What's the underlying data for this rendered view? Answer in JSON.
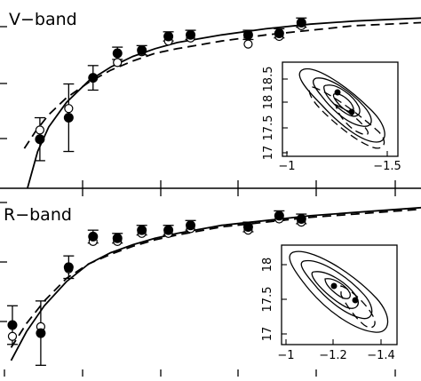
{
  "chart_data": [
    {
      "type": "scatter",
      "panel_label": "V−band",
      "xlim": [
        0.0,
        9.5
      ],
      "ylim": [
        16.0,
        21.5
      ],
      "series": [
        {
          "marker": "filled-circle",
          "points": [
            {
              "x": 0.9,
              "y": 17.6,
              "err": 0.7
            },
            {
              "x": 1.55,
              "y": 18.3,
              "err": 1.1
            },
            {
              "x": 2.1,
              "y": 19.6,
              "err": 0.4
            },
            {
              "x": 2.65,
              "y": 20.4,
              "err": 0.2
            },
            {
              "x": 3.2,
              "y": 20.5,
              "err": 0.15
            },
            {
              "x": 3.8,
              "y": 20.95,
              "err": 0.15
            },
            {
              "x": 4.3,
              "y": 21.0,
              "err": 0.15
            },
            {
              "x": 5.6,
              "y": 21.0,
              "err": 0.15
            },
            {
              "x": 6.3,
              "y": 21.05,
              "err": 0.15
            },
            {
              "x": 6.8,
              "y": 21.4,
              "err": 0.15
            }
          ]
        },
        {
          "marker": "open-circle",
          "points": [
            {
              "x": 0.9,
              "y": 17.9
            },
            {
              "x": 1.55,
              "y": 18.6
            },
            {
              "x": 2.1,
              "y": 19.6
            },
            {
              "x": 2.65,
              "y": 20.1
            },
            {
              "x": 3.2,
              "y": 20.45
            },
            {
              "x": 3.8,
              "y": 20.8
            },
            {
              "x": 4.3,
              "y": 20.9
            },
            {
              "x": 5.6,
              "y": 20.7
            },
            {
              "x": 6.3,
              "y": 20.95
            },
            {
              "x": 6.8,
              "y": 21.3
            }
          ]
        },
        {
          "style": "solid",
          "points": [
            {
              "x": 0.62,
              "y": 16.0
            },
            {
              "x": 0.85,
              "y": 17.2
            },
            {
              "x": 1.1,
              "y": 18.0
            },
            {
              "x": 1.5,
              "y": 18.8
            },
            {
              "x": 2.0,
              "y": 19.5
            },
            {
              "x": 2.5,
              "y": 19.95
            },
            {
              "x": 3.0,
              "y": 20.3
            },
            {
              "x": 3.5,
              "y": 20.55
            },
            {
              "x": 4.0,
              "y": 20.75
            },
            {
              "x": 5.0,
              "y": 21.0
            },
            {
              "x": 6.0,
              "y": 21.2
            },
            {
              "x": 7.0,
              "y": 21.35
            },
            {
              "x": 8.0,
              "y": 21.45
            },
            {
              "x": 9.5,
              "y": 21.55
            }
          ]
        },
        {
          "style": "dashed",
          "points": [
            {
              "x": 0.55,
              "y": 17.3
            },
            {
              "x": 0.8,
              "y": 17.85
            },
            {
              "x": 1.1,
              "y": 18.4
            },
            {
              "x": 1.5,
              "y": 18.95
            },
            {
              "x": 2.0,
              "y": 19.45
            },
            {
              "x": 2.5,
              "y": 19.85
            },
            {
              "x": 3.0,
              "y": 20.15
            },
            {
              "x": 3.5,
              "y": 20.4
            },
            {
              "x": 4.0,
              "y": 20.55
            },
            {
              "x": 5.0,
              "y": 20.8
            },
            {
              "x": 6.0,
              "y": 21.0
            },
            {
              "x": 7.0,
              "y": 21.15
            },
            {
              "x": 8.0,
              "y": 21.3
            },
            {
              "x": 9.5,
              "y": 21.4
            }
          ]
        }
      ],
      "inset": {
        "type": "contour",
        "xlim": [
          -1.0,
          -1.55
        ],
        "ylim": [
          17.0,
          18.8
        ],
        "xticks": [
          "−1",
          "−1.5"
        ],
        "yticks": [
          "17",
          "17.5",
          "18",
          "18.5"
        ],
        "best_fit_points": [
          {
            "x": -1.29,
            "y": 18.15
          },
          {
            "x": -1.32,
            "y": 17.95
          }
        ]
      }
    },
    {
      "type": "scatter",
      "panel_label": "R−band",
      "xlim": [
        0.0,
        9.5
      ],
      "ylim": [
        15.7,
        21.0
      ],
      "series": [
        {
          "marker": "filled-circle",
          "points": [
            {
              "x": 0.28,
              "y": 17.3,
              "err": 0.6
            },
            {
              "x": 0.92,
              "y": 17.05,
              "err": 1.0
            },
            {
              "x": 1.55,
              "y": 19.1,
              "err": 0.35
            },
            {
              "x": 2.1,
              "y": 20.05,
              "err": 0.2
            },
            {
              "x": 2.65,
              "y": 20.0,
              "err": 0.15
            },
            {
              "x": 3.2,
              "y": 20.25,
              "err": 0.15
            },
            {
              "x": 3.8,
              "y": 20.25,
              "err": 0.15
            },
            {
              "x": 4.3,
              "y": 20.4,
              "err": 0.15
            },
            {
              "x": 5.6,
              "y": 20.35,
              "err": 0.15
            },
            {
              "x": 6.3,
              "y": 20.7,
              "err": 0.15
            },
            {
              "x": 6.8,
              "y": 20.6,
              "err": 0.15
            }
          ]
        },
        {
          "marker": "open-circle",
          "points": [
            {
              "x": 0.28,
              "y": 16.95
            },
            {
              "x": 0.92,
              "y": 17.25
            },
            {
              "x": 1.55,
              "y": 19.05
            },
            {
              "x": 2.1,
              "y": 19.9
            },
            {
              "x": 2.65,
              "y": 19.9
            },
            {
              "x": 3.2,
              "y": 20.15
            },
            {
              "x": 3.8,
              "y": 20.15
            },
            {
              "x": 4.3,
              "y": 20.3
            },
            {
              "x": 5.6,
              "y": 20.25
            },
            {
              "x": 6.3,
              "y": 20.6
            },
            {
              "x": 6.8,
              "y": 20.5
            }
          ]
        },
        {
          "style": "solid",
          "points": [
            {
              "x": 0.25,
              "y": 16.2
            },
            {
              "x": 0.6,
              "y": 17.1
            },
            {
              "x": 1.0,
              "y": 17.9
            },
            {
              "x": 1.5,
              "y": 18.65
            },
            {
              "x": 2.0,
              "y": 19.2
            },
            {
              "x": 2.5,
              "y": 19.55
            },
            {
              "x": 3.0,
              "y": 19.8
            },
            {
              "x": 3.5,
              "y": 20.0
            },
            {
              "x": 4.0,
              "y": 20.15
            },
            {
              "x": 5.0,
              "y": 20.4
            },
            {
              "x": 6.0,
              "y": 20.55
            },
            {
              "x": 7.0,
              "y": 20.7
            },
            {
              "x": 8.0,
              "y": 20.8
            },
            {
              "x": 9.5,
              "y": 20.95
            }
          ]
        },
        {
          "style": "dashed",
          "points": [
            {
              "x": 0.25,
              "y": 16.6
            },
            {
              "x": 0.6,
              "y": 17.35
            },
            {
              "x": 1.0,
              "y": 18.05
            },
            {
              "x": 1.5,
              "y": 18.75
            },
            {
              "x": 2.0,
              "y": 19.2
            },
            {
              "x": 2.5,
              "y": 19.5
            },
            {
              "x": 3.0,
              "y": 19.75
            },
            {
              "x": 3.5,
              "y": 19.95
            },
            {
              "x": 4.0,
              "y": 20.1
            },
            {
              "x": 5.0,
              "y": 20.35
            },
            {
              "x": 6.0,
              "y": 20.5
            },
            {
              "x": 7.0,
              "y": 20.65
            },
            {
              "x": 8.0,
              "y": 20.75
            },
            {
              "x": 9.5,
              "y": 20.9
            }
          ]
        }
      ],
      "inset": {
        "type": "contour",
        "xlim": [
          -1.0,
          -1.45
        ],
        "ylim": [
          17.0,
          18.2
        ],
        "xticks": [
          "−1",
          "−1.2",
          "−1.4"
        ],
        "yticks": [
          "17",
          "17.5",
          "18"
        ],
        "best_fit_points": [
          {
            "x": -1.24,
            "y": 17.7
          },
          {
            "x": -1.26,
            "y": 17.5
          }
        ]
      }
    }
  ]
}
